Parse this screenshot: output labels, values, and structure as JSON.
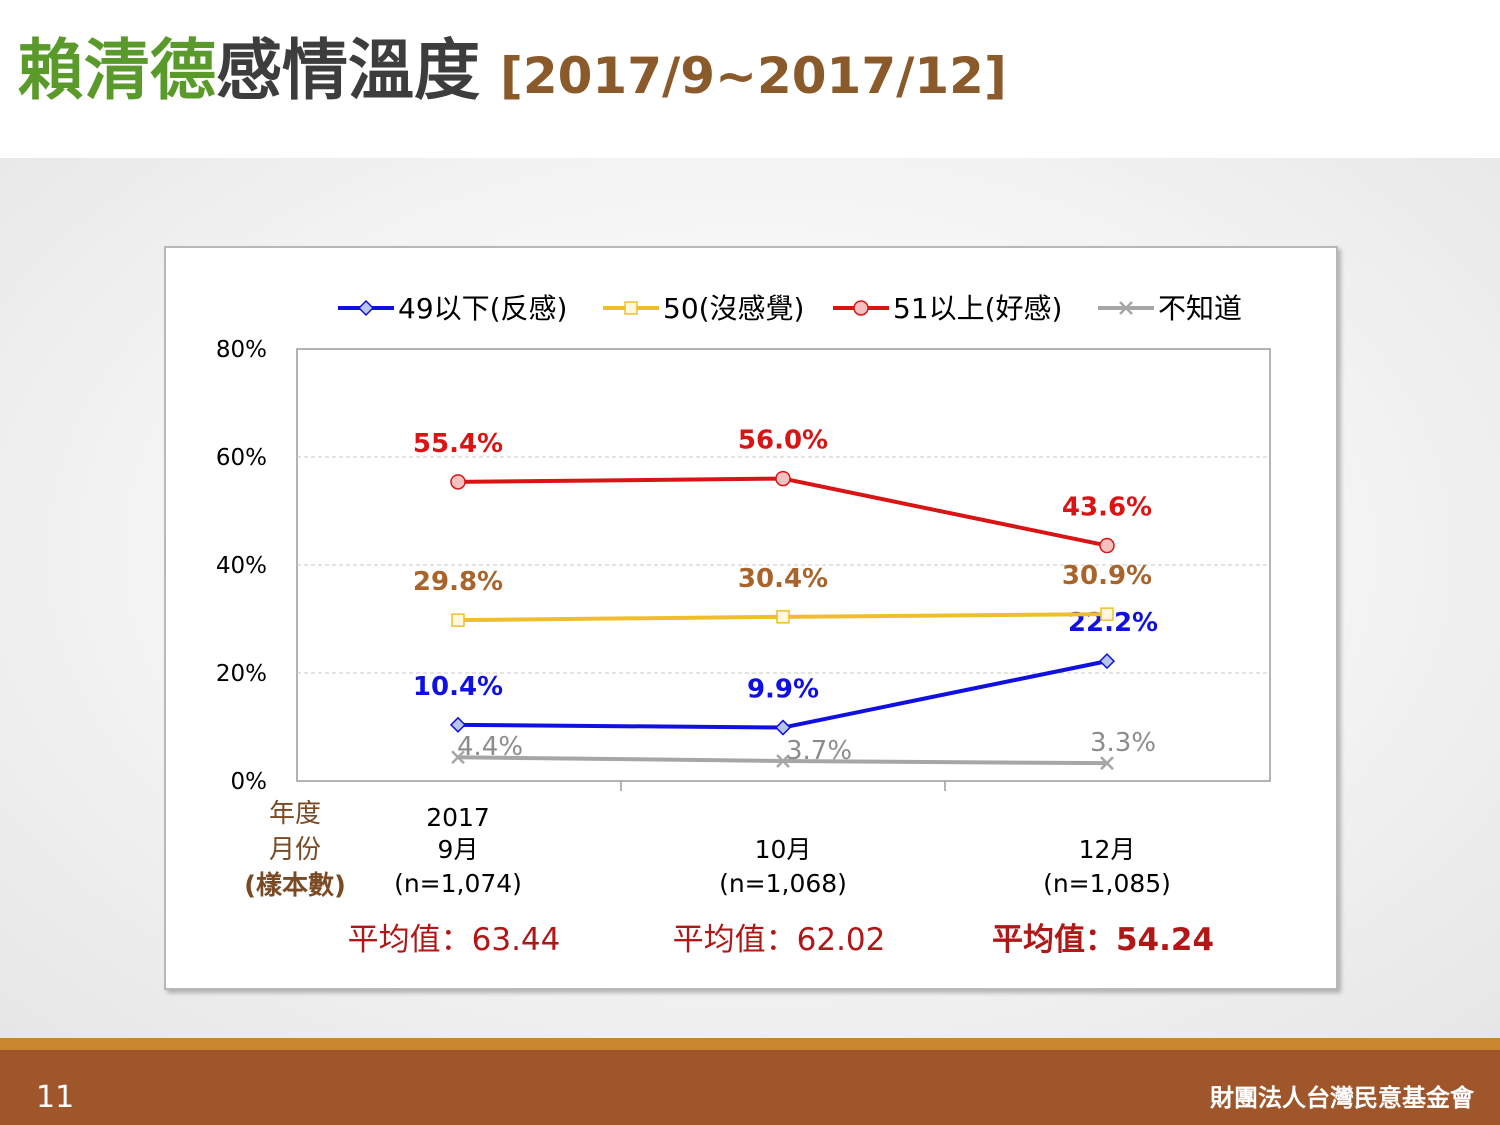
{
  "slide": {
    "title_green": "賴清德",
    "title_gray": "感情溫度",
    "title_date": "[2017/9~2017/12]",
    "page_number": "11",
    "organization": "財團法人台灣民意基金會"
  },
  "chart_data": {
    "type": "line",
    "categories": [
      "9月",
      "10月",
      "12月"
    ],
    "year_label": "2017",
    "row_labels": [
      "年度",
      "月份",
      "(樣本數)"
    ],
    "sample_sizes": [
      "(n=1,074)",
      "(n=1,068)",
      "(n=1,085)"
    ],
    "averages": [
      "平均值：63.44",
      "平均值：62.02",
      "平均值：54.24"
    ],
    "yticks": [
      "0%",
      "20%",
      "40%",
      "60%",
      "80%"
    ],
    "ylim": [
      0,
      80
    ],
    "grid": true,
    "legend_position": "top",
    "series": [
      {
        "name": "49以下(反感)",
        "values": [
          10.4,
          9.9,
          22.2
        ],
        "labels": [
          "10.4%",
          "9.9%",
          "22.2%"
        ],
        "color": "#1010e0",
        "label_color": "#1010e0",
        "marker": "diamond",
        "marker_fill": "#b9c6e8"
      },
      {
        "name": "50(沒感覺)",
        "values": [
          29.8,
          30.4,
          30.9
        ],
        "labels": [
          "29.8%",
          "30.4%",
          "30.9%"
        ],
        "color": "#f0be2c",
        "label_color": "#a8642a",
        "marker": "square",
        "marker_fill": "#fff8dc"
      },
      {
        "name": "51以上(好感)",
        "values": [
          55.4,
          56.0,
          43.6
        ],
        "labels": [
          "55.4%",
          "56.0%",
          "43.6%"
        ],
        "color": "#d81414",
        "label_color": "#d81414",
        "marker": "circle",
        "marker_fill": "#f5c0c0"
      },
      {
        "name": "不知道",
        "values": [
          4.4,
          3.7,
          3.3
        ],
        "labels": [
          "4.4%",
          "3.7%",
          "3.3%"
        ],
        "color": "#a6a6a6",
        "label_color": "#8c8c8c",
        "marker": "x",
        "marker_fill": "none"
      }
    ]
  }
}
